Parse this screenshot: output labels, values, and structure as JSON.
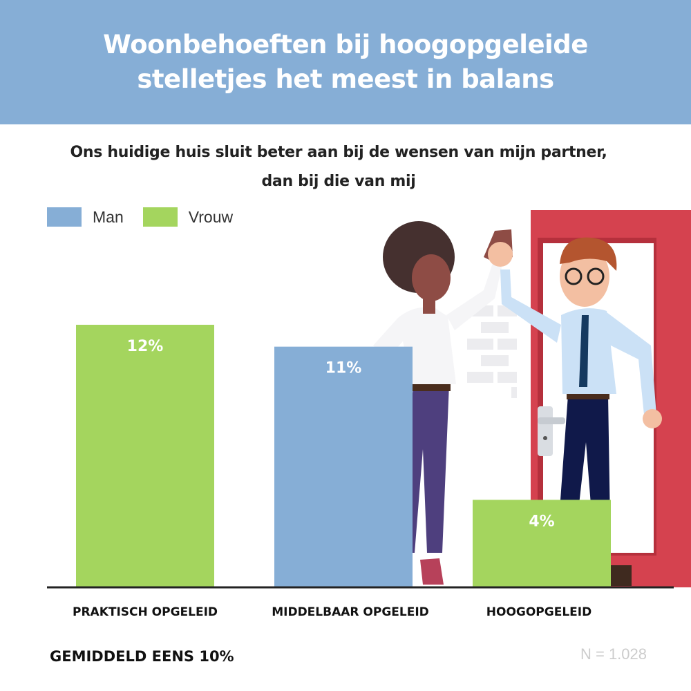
{
  "header": {
    "title": "Woonbehoeften bij hoogopgeleide stelletjes het meest in balans"
  },
  "colors": {
    "header_bg": "#86aed6",
    "man": "#86aed6",
    "vrouw": "#a4d55e",
    "door": "#d5424f",
    "axis": "#222222"
  },
  "chart_data": {
    "type": "bar",
    "title": "Ons huidige huis sluit beter aan bij de wensen van mijn partner, dan bij die van mij",
    "legend": [
      {
        "name": "Man",
        "color": "#86aed6"
      },
      {
        "name": "Vrouw",
        "color": "#a4d55e"
      }
    ],
    "categories": [
      "PRAKTISCH OPGELEID",
      "MIDDELBAAR OPGELEID",
      "HOOGOPGELEID"
    ],
    "values": [
      12,
      11,
      4
    ],
    "value_labels": [
      "12%",
      "11%",
      "4%"
    ],
    "series_of_bar": [
      "Vrouw",
      "Man",
      "Vrouw"
    ],
    "ylim": [
      0,
      12
    ],
    "grid": false,
    "legend_position": "top-left"
  },
  "footer": {
    "average": "GEMIDDELD EENS 10%",
    "sample": "N = 1.028"
  },
  "illustration": {
    "icons": [
      "woman-figure-icon",
      "man-figure-icon",
      "door-icon"
    ]
  }
}
